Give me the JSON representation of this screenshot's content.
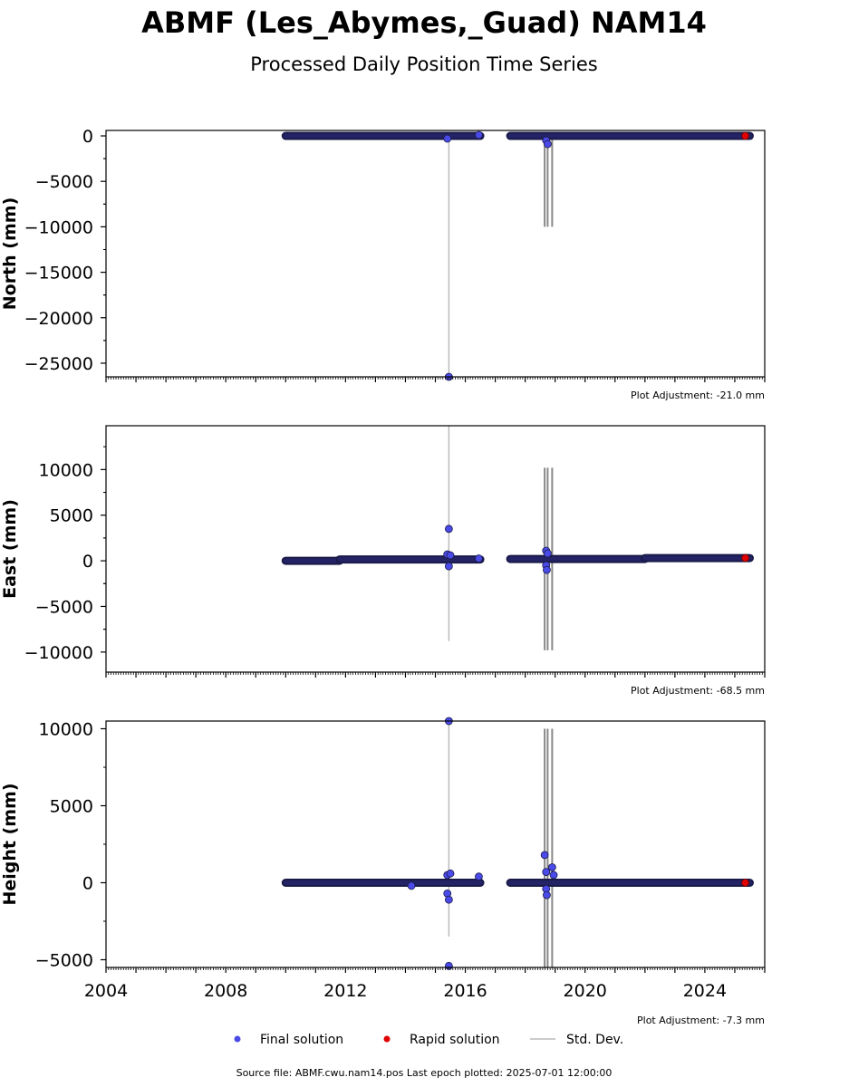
{
  "figure": {
    "title": "ABMF (Les_Abymes,_Guad) NAM14",
    "subtitle": "Processed Daily Position Time Series",
    "footer": "Source file: ABMF.cwu.nam14.pos  Last epoch plotted: 2025-07-01 12:00:00"
  },
  "legend": {
    "final": "Final solution",
    "rapid": "Rapid solution",
    "std": "Std. Dev."
  },
  "colors": {
    "final": "#4a4ae8",
    "final_edge": "#1a1a4a",
    "rapid": "#e00000",
    "std": "#bbbbbb",
    "std_dark": "#888888"
  },
  "chart_data": [
    {
      "type": "scatter",
      "panel": "north",
      "ylabel": "North (mm)",
      "plot_adjustment": "Plot Adjustment: -21.0 mm",
      "xlim": [
        2004.0,
        2026.0
      ],
      "ylim": [
        -26500,
        600
      ],
      "xticks": [
        2004,
        2008,
        2012,
        2016,
        2020,
        2024
      ],
      "yticks": [
        0,
        -5000,
        -10000,
        -15000,
        -20000,
        -25000
      ],
      "segments": [
        {
          "x": [
            2010.0,
            2016.5
          ],
          "y": 0
        },
        {
          "x": [
            2017.5,
            2025.5
          ],
          "y": 0
        }
      ],
      "outliers": [
        {
          "x": 2015.4,
          "y": -300
        },
        {
          "x": 2015.45,
          "y": -26500
        },
        {
          "x": 2016.45,
          "y": 100
        },
        {
          "x": 2018.7,
          "y": -500
        },
        {
          "x": 2018.75,
          "y": -900
        }
      ],
      "std_bars": [
        {
          "x": 2015.45,
          "y0": -26500,
          "y1": 0,
          "shade": "light"
        },
        {
          "x": 2018.65,
          "y0": -10000,
          "y1": 0,
          "shade": "dark"
        },
        {
          "x": 2018.75,
          "y0": -10000,
          "y1": 0,
          "shade": "dark"
        },
        {
          "x": 2018.9,
          "y0": -10000,
          "y1": 0,
          "shade": "dark"
        }
      ],
      "rapid_points": [
        {
          "x": 2025.35,
          "y": 0
        }
      ]
    },
    {
      "type": "scatter",
      "panel": "east",
      "ylabel": "East (mm)",
      "plot_adjustment": "Plot Adjustment: -68.5 mm",
      "xlim": [
        2004.0,
        2026.0
      ],
      "ylim": [
        -12200,
        14800
      ],
      "xticks": [
        2004,
        2008,
        2012,
        2016,
        2020,
        2024
      ],
      "yticks": [
        10000,
        5000,
        0,
        -5000,
        -10000
      ],
      "segments": [
        {
          "x": [
            2010.0,
            2011.8
          ],
          "y": 0
        },
        {
          "x": [
            2011.8,
            2016.5
          ],
          "y": 150
        },
        {
          "x": [
            2017.5,
            2022.0
          ],
          "y": 200
        },
        {
          "x": [
            2022.0,
            2025.5
          ],
          "y": 300
        }
      ],
      "outliers": [
        {
          "x": 2015.45,
          "y": 3500
        },
        {
          "x": 2015.4,
          "y": 700
        },
        {
          "x": 2015.5,
          "y": 600
        },
        {
          "x": 2015.45,
          "y": -600
        },
        {
          "x": 2016.45,
          "y": 250
        },
        {
          "x": 2018.7,
          "y": 1100
        },
        {
          "x": 2018.75,
          "y": 800
        },
        {
          "x": 2018.7,
          "y": -500
        },
        {
          "x": 2018.72,
          "y": -1000
        }
      ],
      "std_bars": [
        {
          "x": 2015.45,
          "y0": -8800,
          "y1": 14800,
          "shade": "light"
        },
        {
          "x": 2018.65,
          "y0": -9800,
          "y1": 10200,
          "shade": "dark"
        },
        {
          "x": 2018.75,
          "y0": -9800,
          "y1": 10200,
          "shade": "dark"
        },
        {
          "x": 2018.9,
          "y0": -9800,
          "y1": 10200,
          "shade": "dark"
        }
      ],
      "rapid_points": [
        {
          "x": 2025.35,
          "y": 300
        }
      ]
    },
    {
      "type": "scatter",
      "panel": "height",
      "ylabel": "Height (mm)",
      "plot_adjustment": "Plot Adjustment: -7.3 mm",
      "xlim": [
        2004.0,
        2026.0
      ],
      "ylim": [
        -5500,
        10500
      ],
      "xticks": [
        2004,
        2008,
        2012,
        2016,
        2020,
        2024
      ],
      "xtick_labels": [
        "2004",
        "2008",
        "2012",
        "2016",
        "2020",
        "2024"
      ],
      "yticks": [
        10000,
        5000,
        0,
        -5000
      ],
      "segments": [
        {
          "x": [
            2010.0,
            2016.5
          ],
          "y": 0
        },
        {
          "x": [
            2017.5,
            2025.5
          ],
          "y": 0
        }
      ],
      "outliers": [
        {
          "x": 2015.45,
          "y": 10500
        },
        {
          "x": 2015.4,
          "y": 500
        },
        {
          "x": 2015.5,
          "y": 600
        },
        {
          "x": 2015.4,
          "y": -700
        },
        {
          "x": 2015.45,
          "y": -1100
        },
        {
          "x": 2015.45,
          "y": -5400
        },
        {
          "x": 2014.2,
          "y": -200
        },
        {
          "x": 2016.45,
          "y": 400
        },
        {
          "x": 2018.65,
          "y": 1800
        },
        {
          "x": 2018.7,
          "y": 700
        },
        {
          "x": 2018.9,
          "y": 1000
        },
        {
          "x": 2018.95,
          "y": 500
        },
        {
          "x": 2018.7,
          "y": -400
        },
        {
          "x": 2018.72,
          "y": -800
        }
      ],
      "std_bars": [
        {
          "x": 2015.45,
          "y0": -3500,
          "y1": 10500,
          "shade": "light"
        },
        {
          "x": 2018.65,
          "y0": -5500,
          "y1": 10000,
          "shade": "dark"
        },
        {
          "x": 2018.75,
          "y0": -5500,
          "y1": 10000,
          "shade": "dark"
        },
        {
          "x": 2018.9,
          "y0": -5500,
          "y1": 10000,
          "shade": "dark"
        }
      ],
      "rapid_points": [
        {
          "x": 2025.35,
          "y": 0
        }
      ]
    }
  ]
}
